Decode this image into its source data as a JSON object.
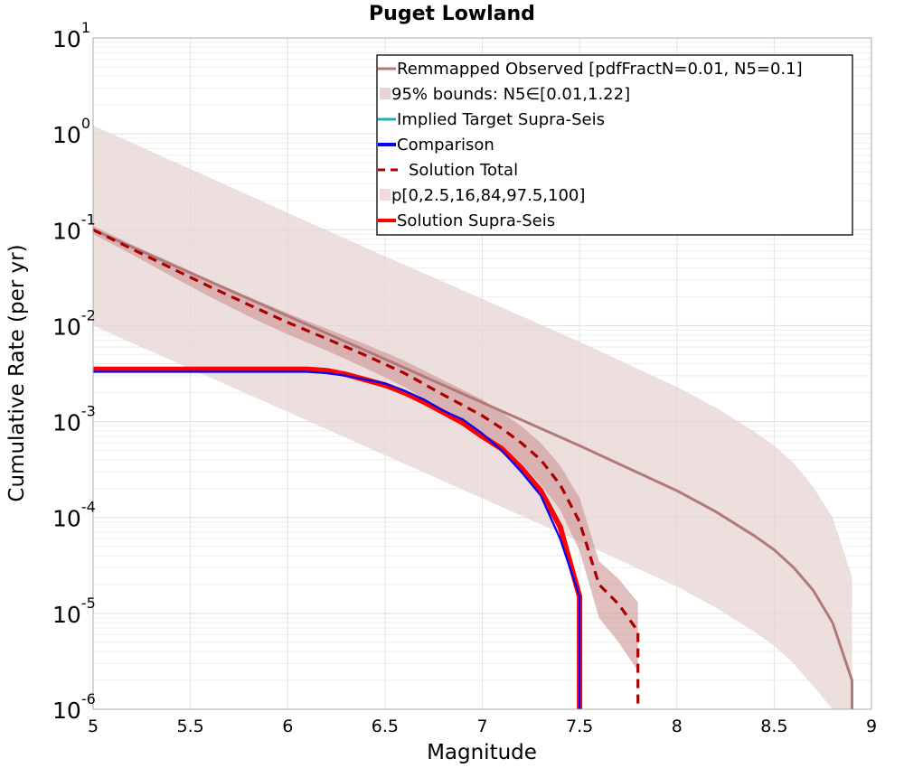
{
  "chart_data": {
    "type": "line",
    "title": "Puget Lowland",
    "xlabel": "Magnitude",
    "ylabel": "Cumulative Rate (per yr)",
    "xlim": [
      5,
      9
    ],
    "ylim": [
      1e-06,
      10
    ],
    "yscale": "log",
    "grid": true,
    "legend_position": "top-right",
    "x_ticks": [
      "5",
      "5.5",
      "6",
      "6.5",
      "7",
      "7.5",
      "8",
      "8.5",
      "9"
    ],
    "y_ticks": [
      {
        "base": "10",
        "exp": "1"
      },
      {
        "base": "10",
        "exp": "0"
      },
      {
        "base": "10",
        "exp": "-1"
      },
      {
        "base": "10",
        "exp": "-2"
      },
      {
        "base": "10",
        "exp": "-3"
      },
      {
        "base": "10",
        "exp": "-4"
      },
      {
        "base": "10",
        "exp": "-5"
      },
      {
        "base": "10",
        "exp": "-6"
      }
    ],
    "colors": {
      "remapped": "#b07a7a",
      "band_light": "#e8d4d4",
      "implied": "#20b2b2",
      "comparison": "#0000ff",
      "solution_total": "#aa0000",
      "percentile_band": "#c98a8a",
      "supra": "#ff0000"
    },
    "legend": [
      {
        "label": "Remmapped Observed [pdfFractN=0.01, N5=0.1]",
        "style": "line",
        "color": "#b07a7a"
      },
      {
        "label": "95% bounds: N5∈[0.01,1.22]",
        "style": "patch",
        "color": "#e8d4d4"
      },
      {
        "label": "Implied Target Supra-Seis",
        "style": "line",
        "color": "#20b2b2"
      },
      {
        "label": "Comparison",
        "style": "thickline",
        "color": "#0000ff"
      },
      {
        "label": "Solution Total",
        "style": "dashed",
        "color": "#aa0000"
      },
      {
        "label": "p[0,2.5,16,84,97.5,100]",
        "style": "patch",
        "color": "#f0dada"
      },
      {
        "label": "Solution Supra-Seis",
        "style": "thickline",
        "color": "#ff0000"
      }
    ],
    "series": [
      {
        "name": "Remmapped Observed [pdfFractN=0.01, N5=0.1]",
        "x": [
          5.0,
          5.5,
          6.0,
          6.5,
          7.0,
          7.5,
          8.0,
          8.2,
          8.4,
          8.5,
          8.6,
          8.7,
          8.8,
          8.9,
          8.9
        ],
        "y": [
          0.1,
          0.0355,
          0.0126,
          0.00447,
          0.00158,
          0.00056,
          0.00019,
          0.000115,
          6.4e-05,
          4.6e-05,
          3e-05,
          1.75e-05,
          8e-06,
          2e-06,
          1e-06
        ]
      },
      {
        "name": "95% bounds: N5∈[0.01,1.22]",
        "x": [
          5.0,
          5.5,
          6.0,
          6.5,
          7.0,
          7.5,
          8.0,
          8.2,
          8.4,
          8.5,
          8.6,
          8.7,
          8.8,
          8.9
        ],
        "upper": [
          1.22,
          0.43,
          0.15,
          0.053,
          0.019,
          0.0068,
          0.0023,
          0.0014,
          0.00078,
          0.00056,
          0.00037,
          0.00021,
          0.0001,
          2.4e-05
        ],
        "lower": [
          0.01,
          0.00355,
          0.00126,
          0.000447,
          0.000158,
          5.6e-05,
          1.9e-05,
          1.15e-05,
          6.4e-06,
          4.6e-06,
          3e-06,
          1.75e-06,
          1e-06,
          1e-06
        ]
      },
      {
        "name": "Comparison",
        "x": [
          5.0,
          6.0,
          6.1,
          6.2,
          6.3,
          6.5,
          6.6,
          6.7,
          6.8,
          6.9,
          7.0,
          7.1,
          7.2,
          7.3,
          7.4,
          7.5,
          7.5
        ],
        "y": [
          0.0033,
          0.0033,
          0.0033,
          0.0032,
          0.003,
          0.0025,
          0.0021,
          0.0017,
          0.0013,
          0.00105,
          0.00075,
          0.0005,
          0.0003,
          0.00017,
          6e-05,
          1.5e-05,
          1e-06
        ]
      },
      {
        "name": "Solution Total",
        "x": [
          5.0,
          5.2,
          5.4,
          5.6,
          5.8,
          6.0,
          6.2,
          6.4,
          6.6,
          6.8,
          7.0,
          7.1,
          7.2,
          7.3,
          7.4,
          7.5,
          7.6,
          7.7,
          7.8,
          7.8
        ],
        "y": [
          0.1,
          0.063,
          0.04,
          0.0255,
          0.0165,
          0.0108,
          0.0073,
          0.0049,
          0.0032,
          0.0019,
          0.00115,
          0.00085,
          0.0006,
          0.0004,
          0.00022,
          9e-05,
          2e-05,
          1.25e-05,
          6.5e-06,
          1e-06
        ]
      },
      {
        "name": "p[0,2.5,16,84,97.5,100]",
        "x": [
          5.0,
          5.2,
          5.4,
          5.6,
          5.8,
          6.0,
          6.2,
          6.4,
          6.6,
          6.8,
          7.0,
          7.1,
          7.2,
          7.3,
          7.4,
          7.5,
          7.6,
          7.7,
          7.8
        ],
        "upper": [
          0.11,
          0.07,
          0.046,
          0.03,
          0.02,
          0.0135,
          0.0093,
          0.0064,
          0.0043,
          0.0027,
          0.0017,
          0.00125,
          0.0009,
          0.0006,
          0.00035,
          0.00016,
          3.5e-05,
          2.3e-05,
          1.3e-05
        ],
        "lower": [
          0.09,
          0.055,
          0.033,
          0.02,
          0.0125,
          0.0081,
          0.0055,
          0.0036,
          0.0023,
          0.0013,
          0.00075,
          0.00055,
          0.00037,
          0.00022,
          0.00012,
          4.5e-05,
          9e-06,
          5e-06,
          2.5e-06
        ]
      },
      {
        "name": "Solution Supra-Seis",
        "x": [
          5.0,
          6.0,
          6.1,
          6.2,
          6.3,
          6.5,
          6.6,
          6.7,
          6.8,
          6.9,
          7.0,
          7.1,
          7.2,
          7.3,
          7.4,
          7.5,
          7.5
        ],
        "y": [
          0.0035,
          0.0035,
          0.0035,
          0.0034,
          0.0031,
          0.0024,
          0.002,
          0.0016,
          0.00125,
          0.00097,
          0.0007,
          0.00052,
          0.00033,
          0.00019,
          8e-05,
          1.5e-05,
          1e-06
        ]
      }
    ]
  }
}
